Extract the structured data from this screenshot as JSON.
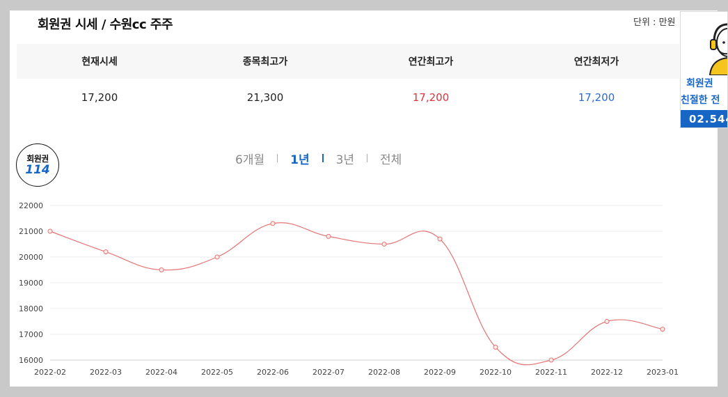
{
  "header": {
    "title": "회원권 시세 / 수원cc 주주",
    "unit": "단위 : 만원"
  },
  "summary": {
    "headers": [
      "현재시세",
      "종목최고가",
      "연간최고가",
      "연간최저가"
    ],
    "values": [
      "17,200",
      "21,300",
      "17,200",
      "17,200"
    ],
    "colors": {
      "high": "#e0313d",
      "low": "#2b6bd6"
    }
  },
  "badge": {
    "top": "회원권",
    "bottom": "114"
  },
  "tabs": [
    "6개월",
    "1년",
    "3년",
    "전체"
  ],
  "active_tab": "1년",
  "sidebox": {
    "line1": "회원권",
    "line2": "친절한 전",
    "phone": "02.544"
  },
  "chart_data": {
    "type": "line",
    "x": [
      "2022-02",
      "2022-03",
      "2022-04",
      "2022-05",
      "2022-06",
      "2022-07",
      "2022-08",
      "2022-09",
      "2022-10",
      "2022-11",
      "2022-12",
      "2023-01"
    ],
    "values": [
      21000,
      20200,
      19500,
      20000,
      21300,
      20800,
      20500,
      20700,
      16500,
      16000,
      17500,
      17200
    ],
    "y_ticks": [
      16000,
      17000,
      18000,
      19000,
      20000,
      21000,
      22000
    ],
    "ylim": [
      16000,
      22000
    ],
    "grid": true,
    "line_color": "#e57373",
    "title": "",
    "xlabel": "",
    "ylabel": ""
  }
}
